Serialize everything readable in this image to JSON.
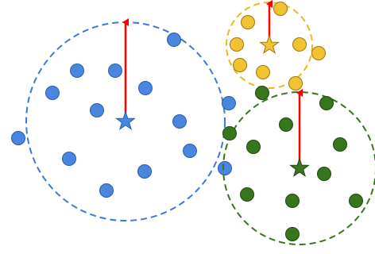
{
  "clusters": [
    {
      "name": "blue",
      "color": "#3c78d8",
      "fill": "#4a86e0",
      "points": 15
    },
    {
      "name": "yellow",
      "color": "#e8b923",
      "fill": "#f1c232",
      "points": 9
    },
    {
      "name": "green",
      "color": "#38761d",
      "fill": "#38761d",
      "points": 13
    }
  ],
  "arrow_color": "#ff0000",
  "boundary_style": "dashed",
  "icons": {
    "centroid": "star-icon",
    "member": "circle-icon"
  }
}
